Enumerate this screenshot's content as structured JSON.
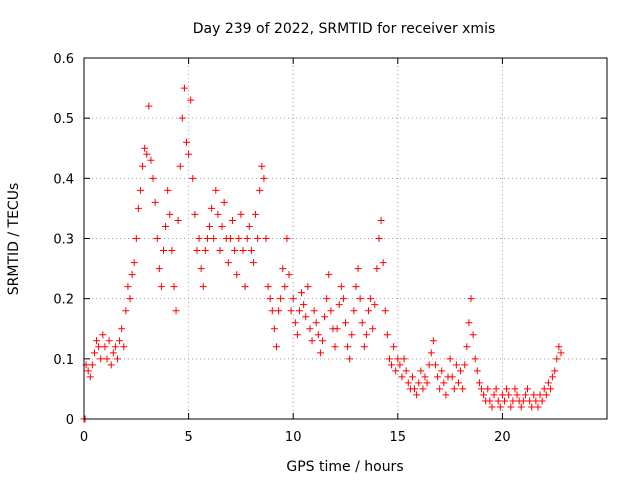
{
  "chart_data": {
    "type": "scatter",
    "title": "Day 239 of 2022, SRMTID for receiver xmis",
    "xlabel": "GPS time / hours",
    "ylabel": "SRMTID / TECUs",
    "xlim": [
      0,
      25
    ],
    "ylim": [
      0,
      0.6
    ],
    "x_ticks": [
      0,
      5,
      10,
      15,
      20
    ],
    "x_tick_labels": [
      "0",
      "5",
      "10",
      "15",
      "20"
    ],
    "y_ticks": [
      0,
      0.1,
      0.2,
      0.3,
      0.4,
      0.5,
      0.6
    ],
    "y_tick_labels": [
      "0",
      "0.1",
      "0.2",
      "0.3",
      "0.4",
      "0.5",
      "0.6"
    ],
    "grid": true,
    "marker": "+",
    "color": "#ff0000",
    "series": [
      {
        "name": "SRMTID",
        "points": [
          [
            0.0,
            0.0
          ],
          [
            0.05,
            0.0
          ],
          [
            0.1,
            0.09
          ],
          [
            0.2,
            0.08
          ],
          [
            0.3,
            0.07
          ],
          [
            0.4,
            0.09
          ],
          [
            0.5,
            0.11
          ],
          [
            0.6,
            0.13
          ],
          [
            0.7,
            0.12
          ],
          [
            0.8,
            0.1
          ],
          [
            0.9,
            0.14
          ],
          [
            1.0,
            0.12
          ],
          [
            1.1,
            0.1
          ],
          [
            1.2,
            0.13
          ],
          [
            1.3,
            0.09
          ],
          [
            1.4,
            0.11
          ],
          [
            1.5,
            0.12
          ],
          [
            1.6,
            0.1
          ],
          [
            1.7,
            0.13
          ],
          [
            1.8,
            0.15
          ],
          [
            1.9,
            0.12
          ],
          [
            2.0,
            0.18
          ],
          [
            2.1,
            0.22
          ],
          [
            2.2,
            0.2
          ],
          [
            2.3,
            0.24
          ],
          [
            2.4,
            0.26
          ],
          [
            2.5,
            0.3
          ],
          [
            2.6,
            0.35
          ],
          [
            2.7,
            0.38
          ],
          [
            2.8,
            0.42
          ],
          [
            2.9,
            0.45
          ],
          [
            3.0,
            0.44
          ],
          [
            3.1,
            0.52
          ],
          [
            3.2,
            0.43
          ],
          [
            3.3,
            0.4
          ],
          [
            3.4,
            0.36
          ],
          [
            3.5,
            0.3
          ],
          [
            3.6,
            0.25
          ],
          [
            3.7,
            0.22
          ],
          [
            3.8,
            0.28
          ],
          [
            3.9,
            0.32
          ],
          [
            4.0,
            0.38
          ],
          [
            4.1,
            0.34
          ],
          [
            4.2,
            0.28
          ],
          [
            4.3,
            0.22
          ],
          [
            4.4,
            0.18
          ],
          [
            4.5,
            0.33
          ],
          [
            4.6,
            0.42
          ],
          [
            4.7,
            0.5
          ],
          [
            4.8,
            0.55
          ],
          [
            4.9,
            0.46
          ],
          [
            5.0,
            0.44
          ],
          [
            5.1,
            0.53
          ],
          [
            5.2,
            0.4
          ],
          [
            5.3,
            0.34
          ],
          [
            5.4,
            0.28
          ],
          [
            5.5,
            0.3
          ],
          [
            5.6,
            0.25
          ],
          [
            5.7,
            0.22
          ],
          [
            5.8,
            0.28
          ],
          [
            5.9,
            0.3
          ],
          [
            6.0,
            0.32
          ],
          [
            6.1,
            0.35
          ],
          [
            6.2,
            0.3
          ],
          [
            6.3,
            0.38
          ],
          [
            6.4,
            0.34
          ],
          [
            6.5,
            0.28
          ],
          [
            6.6,
            0.32
          ],
          [
            6.7,
            0.36
          ],
          [
            6.8,
            0.3
          ],
          [
            6.9,
            0.26
          ],
          [
            7.0,
            0.3
          ],
          [
            7.1,
            0.33
          ],
          [
            7.2,
            0.28
          ],
          [
            7.3,
            0.24
          ],
          [
            7.4,
            0.3
          ],
          [
            7.5,
            0.34
          ],
          [
            7.6,
            0.28
          ],
          [
            7.7,
            0.22
          ],
          [
            7.8,
            0.3
          ],
          [
            7.9,
            0.32
          ],
          [
            8.0,
            0.28
          ],
          [
            8.1,
            0.26
          ],
          [
            8.2,
            0.34
          ],
          [
            8.3,
            0.3
          ],
          [
            8.4,
            0.38
          ],
          [
            8.5,
            0.42
          ],
          [
            8.6,
            0.4
          ],
          [
            8.7,
            0.3
          ],
          [
            8.8,
            0.22
          ],
          [
            8.9,
            0.2
          ],
          [
            9.0,
            0.18
          ],
          [
            9.1,
            0.15
          ],
          [
            9.2,
            0.12
          ],
          [
            9.3,
            0.18
          ],
          [
            9.4,
            0.2
          ],
          [
            9.5,
            0.25
          ],
          [
            9.6,
            0.22
          ],
          [
            9.7,
            0.3
          ],
          [
            9.8,
            0.24
          ],
          [
            9.9,
            0.18
          ],
          [
            10.0,
            0.2
          ],
          [
            10.1,
            0.16
          ],
          [
            10.2,
            0.14
          ],
          [
            10.3,
            0.18
          ],
          [
            10.4,
            0.21
          ],
          [
            10.5,
            0.19
          ],
          [
            10.6,
            0.17
          ],
          [
            10.7,
            0.22
          ],
          [
            10.8,
            0.15
          ],
          [
            10.9,
            0.13
          ],
          [
            11.0,
            0.18
          ],
          [
            11.1,
            0.16
          ],
          [
            11.2,
            0.14
          ],
          [
            11.3,
            0.11
          ],
          [
            11.4,
            0.13
          ],
          [
            11.5,
            0.17
          ],
          [
            11.6,
            0.2
          ],
          [
            11.7,
            0.24
          ],
          [
            11.8,
            0.18
          ],
          [
            11.9,
            0.15
          ],
          [
            12.0,
            0.12
          ],
          [
            12.1,
            0.15
          ],
          [
            12.2,
            0.19
          ],
          [
            12.3,
            0.22
          ],
          [
            12.4,
            0.2
          ],
          [
            12.5,
            0.16
          ],
          [
            12.6,
            0.12
          ],
          [
            12.7,
            0.1
          ],
          [
            12.8,
            0.14
          ],
          [
            12.9,
            0.18
          ],
          [
            13.0,
            0.22
          ],
          [
            13.1,
            0.25
          ],
          [
            13.2,
            0.2
          ],
          [
            13.3,
            0.16
          ],
          [
            13.4,
            0.12
          ],
          [
            13.5,
            0.14
          ],
          [
            13.6,
            0.18
          ],
          [
            13.7,
            0.2
          ],
          [
            13.8,
            0.15
          ],
          [
            13.9,
            0.19
          ],
          [
            14.0,
            0.25
          ],
          [
            14.1,
            0.3
          ],
          [
            14.2,
            0.33
          ],
          [
            14.3,
            0.26
          ],
          [
            14.4,
            0.18
          ],
          [
            14.5,
            0.14
          ],
          [
            14.6,
            0.1
          ],
          [
            14.7,
            0.09
          ],
          [
            14.8,
            0.12
          ],
          [
            14.9,
            0.08
          ],
          [
            15.0,
            0.1
          ],
          [
            15.1,
            0.09
          ],
          [
            15.2,
            0.07
          ],
          [
            15.3,
            0.1
          ],
          [
            15.4,
            0.08
          ],
          [
            15.5,
            0.06
          ],
          [
            15.6,
            0.05
          ],
          [
            15.7,
            0.07
          ],
          [
            15.8,
            0.05
          ],
          [
            15.9,
            0.04
          ],
          [
            16.0,
            0.06
          ],
          [
            16.1,
            0.08
          ],
          [
            16.2,
            0.05
          ],
          [
            16.3,
            0.07
          ],
          [
            16.4,
            0.06
          ],
          [
            16.5,
            0.09
          ],
          [
            16.6,
            0.11
          ],
          [
            16.7,
            0.13
          ],
          [
            16.8,
            0.09
          ],
          [
            16.9,
            0.07
          ],
          [
            17.0,
            0.05
          ],
          [
            17.1,
            0.08
          ],
          [
            17.2,
            0.06
          ],
          [
            17.3,
            0.04
          ],
          [
            17.4,
            0.07
          ],
          [
            17.5,
            0.1
          ],
          [
            17.6,
            0.07
          ],
          [
            17.7,
            0.05
          ],
          [
            17.8,
            0.09
          ],
          [
            17.9,
            0.06
          ],
          [
            18.0,
            0.08
          ],
          [
            18.1,
            0.05
          ],
          [
            18.2,
            0.09
          ],
          [
            18.3,
            0.12
          ],
          [
            18.4,
            0.16
          ],
          [
            18.5,
            0.2
          ],
          [
            18.6,
            0.14
          ],
          [
            18.7,
            0.1
          ],
          [
            18.8,
            0.08
          ],
          [
            18.9,
            0.06
          ],
          [
            19.0,
            0.05
          ],
          [
            19.1,
            0.04
          ],
          [
            19.2,
            0.03
          ],
          [
            19.3,
            0.05
          ],
          [
            19.4,
            0.03
          ],
          [
            19.5,
            0.02
          ],
          [
            19.6,
            0.04
          ],
          [
            19.7,
            0.05
          ],
          [
            19.8,
            0.03
          ],
          [
            19.9,
            0.02
          ],
          [
            20.0,
            0.04
          ],
          [
            20.1,
            0.03
          ],
          [
            20.2,
            0.05
          ],
          [
            20.3,
            0.04
          ],
          [
            20.4,
            0.02
          ],
          [
            20.5,
            0.03
          ],
          [
            20.6,
            0.05
          ],
          [
            20.7,
            0.04
          ],
          [
            20.8,
            0.03
          ],
          [
            20.9,
            0.02
          ],
          [
            21.0,
            0.03
          ],
          [
            21.1,
            0.04
          ],
          [
            21.2,
            0.05
          ],
          [
            21.3,
            0.03
          ],
          [
            21.4,
            0.02
          ],
          [
            21.5,
            0.04
          ],
          [
            21.6,
            0.03
          ],
          [
            21.7,
            0.02
          ],
          [
            21.8,
            0.04
          ],
          [
            21.9,
            0.03
          ],
          [
            22.0,
            0.05
          ],
          [
            22.1,
            0.04
          ],
          [
            22.2,
            0.06
          ],
          [
            22.3,
            0.05
          ],
          [
            22.4,
            0.07
          ],
          [
            22.5,
            0.08
          ],
          [
            22.6,
            0.1
          ],
          [
            22.7,
            0.12
          ],
          [
            22.8,
            0.11
          ]
        ]
      }
    ]
  }
}
